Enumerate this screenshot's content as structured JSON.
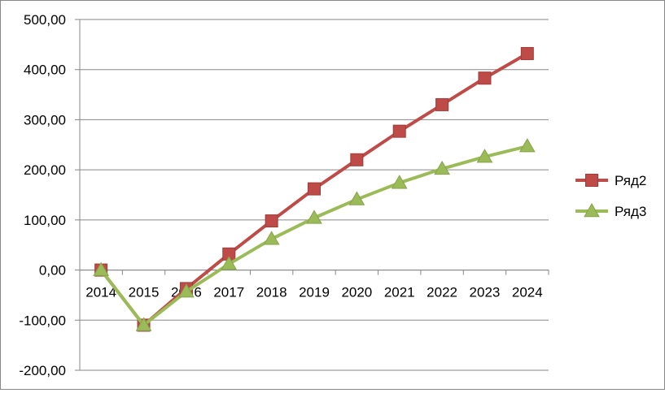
{
  "chart_data": {
    "type": "line",
    "categories": [
      "2014",
      "2015",
      "2016",
      "2017",
      "2018",
      "2019",
      "2020",
      "2021",
      "2022",
      "2023",
      "2024"
    ],
    "series": [
      {
        "name": "Ряд2",
        "color": "#BE4B48",
        "marker": "square",
        "values": [
          0,
          -110,
          -37,
          32,
          98,
          162,
          220,
          277,
          330,
          383,
          432
        ]
      },
      {
        "name": "Ряд3",
        "color": "#9BBB59",
        "marker": "triangle",
        "values": [
          0,
          -110,
          -43,
          12,
          62,
          104,
          141,
          174,
          202,
          226,
          247
        ]
      }
    ],
    "y_ticks": [
      "500,00",
      "400,00",
      "300,00",
      "200,00",
      "100,00",
      "0,00",
      "-100,00",
      "-200,00"
    ],
    "ylim": [
      -200,
      500
    ],
    "title": "",
    "xlabel": "",
    "ylabel": "",
    "grid": "horizontal",
    "legend_position": "right",
    "x_labels_position": "at-zero-line"
  }
}
